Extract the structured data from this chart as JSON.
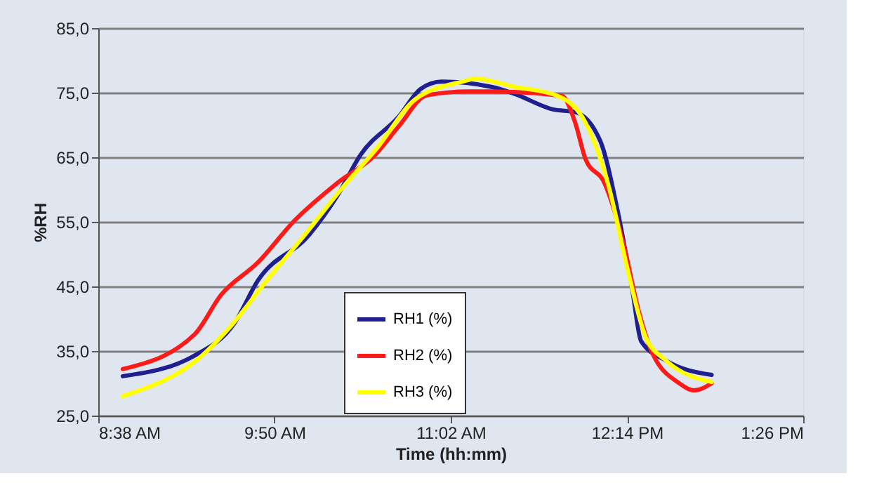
{
  "chart_data": {
    "type": "line",
    "xlabel": "Time (hh:mm)",
    "ylabel": "%RH",
    "xlim": [
      8.6333,
      13.4333
    ],
    "xticks": [
      {
        "value": 8.6333,
        "label": "8:38 AM"
      },
      {
        "value": 9.8333,
        "label": "9:50 AM"
      },
      {
        "value": 11.0333,
        "label": "11:02 AM"
      },
      {
        "value": 12.2333,
        "label": "12:14 PM"
      },
      {
        "value": 13.4333,
        "label": "1:26 PM"
      }
    ],
    "ylim": [
      25,
      85
    ],
    "yticks": [
      {
        "value": 25,
        "label": "25,0"
      },
      {
        "value": 35,
        "label": "35,0"
      },
      {
        "value": 45,
        "label": "45,0"
      },
      {
        "value": 55,
        "label": "55,0"
      },
      {
        "value": 65,
        "label": "65,0"
      },
      {
        "value": 75,
        "label": "75,0"
      },
      {
        "value": 85,
        "label": "85,0"
      }
    ],
    "grid": "y",
    "legend": "bottom",
    "line_style": "solid",
    "marker": "none",
    "series": [
      {
        "name": "RH1 (%)",
        "color": "#1f1f8f",
        "x": [
          8.8,
          9.29,
          9.56,
          9.72,
          10.07,
          10.26,
          10.42,
          10.68,
          10.83,
          10.97,
          11.31,
          11.47,
          11.73,
          11.88,
          12.05,
          12.17,
          12.27,
          12.33,
          12.5,
          12.81
        ],
        "values": [
          31.1,
          34.3,
          39.3,
          45.9,
          53,
          59,
          65.4,
          71.3,
          75.6,
          76.7,
          75.9,
          74.8,
          72.4,
          72,
          67.6,
          56.7,
          44.4,
          36.5,
          33.5,
          31.3
        ]
      },
      {
        "name": "RH2 (%)",
        "color": "#ff1a1a",
        "x": [
          8.8,
          9.29,
          9.47,
          9.72,
          9.97,
          10.26,
          10.52,
          10.68,
          10.87,
          11.16,
          11.31,
          11.79,
          11.88,
          11.95,
          12.08,
          12.21,
          12.31,
          12.4,
          12.59,
          12.69,
          12.81
        ],
        "values": [
          32.2,
          37.6,
          43.7,
          48.7,
          55.2,
          61,
          65.4,
          69.8,
          74.6,
          75.2,
          75.2,
          74.5,
          70.4,
          64.8,
          61,
          51.6,
          41.5,
          35,
          30,
          28.9,
          30
        ]
      },
      {
        "name": "RH3 (%)",
        "color": "#ffff00",
        "x": [
          8.8,
          9.34,
          9.53,
          9.78,
          10.04,
          10.3,
          10.52,
          10.8,
          11.16,
          11.19,
          11.47,
          11.76,
          11.95,
          12.11,
          12.24,
          12.36,
          12.5,
          12.81
        ],
        "values": [
          28,
          34.3,
          38.7,
          45.9,
          53,
          60.4,
          66.1,
          74.1,
          77,
          77.2,
          75.9,
          74.5,
          70.4,
          60.4,
          47.4,
          37.2,
          33.5,
          30.2
        ]
      }
    ]
  }
}
